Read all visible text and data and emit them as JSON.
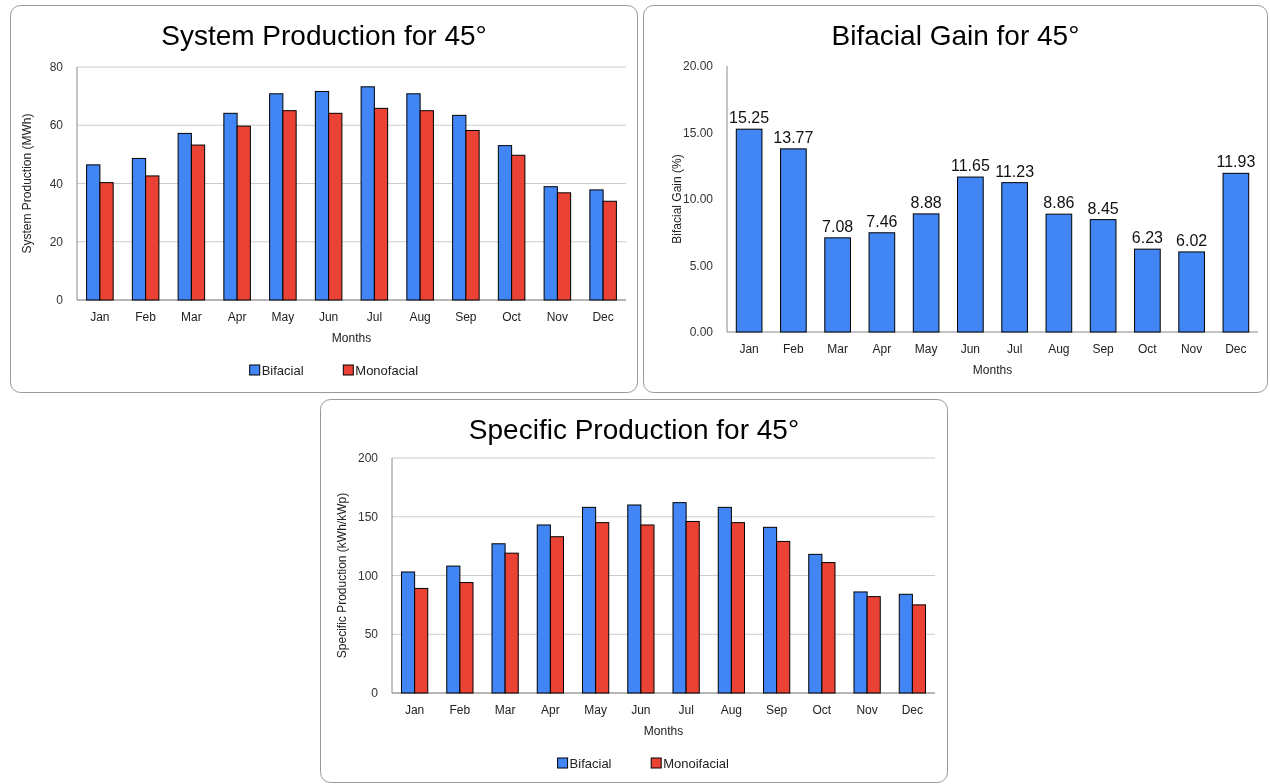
{
  "chart_data": [
    {
      "type": "bar",
      "title": "System Production for 45°",
      "xlabel": "Months",
      "ylabel": "System Production  (MWh)",
      "categories": [
        "Jan",
        "Feb",
        "Mar",
        "Apr",
        "May",
        "Jun",
        "Jul",
        "Aug",
        "Sep",
        "Oct",
        "Nov",
        "Dec"
      ],
      "series": [
        {
          "name": "Bifacial",
          "color": "#4285f4",
          "values": [
            46.4,
            48.6,
            57.2,
            64.1,
            70.8,
            71.6,
            73.2,
            70.8,
            63.4,
            53.0,
            38.9,
            37.8
          ]
        },
        {
          "name": "Monofacial",
          "color": "#ea4335",
          "values": [
            40.3,
            42.6,
            53.2,
            59.7,
            65.0,
            64.1,
            65.8,
            65.0,
            58.2,
            49.7,
            36.8,
            33.9
          ]
        }
      ],
      "ylim": [
        0,
        80
      ],
      "yticks": [
        0,
        20,
        40,
        60,
        80
      ],
      "grid": "y",
      "legend": "bottom"
    },
    {
      "type": "bar",
      "title": "Bifacial Gain for 45°",
      "xlabel": "Months",
      "ylabel": "Bifacial Gain (%)",
      "categories": [
        "Jan",
        "Feb",
        "Mar",
        "Apr",
        "May",
        "Jun",
        "Jul",
        "Aug",
        "Sep",
        "Oct",
        "Nov",
        "Dec"
      ],
      "series": [
        {
          "color": "#4285f4",
          "values": [
            15.25,
            13.77,
            7.08,
            7.46,
            8.88,
            11.65,
            11.23,
            8.86,
            8.45,
            6.23,
            6.02,
            11.93
          ]
        }
      ],
      "ylim": [
        0,
        20
      ],
      "yticks": [
        {
          "value": 0,
          "label": "0.00"
        },
        {
          "value": 5,
          "label": "5.00"
        },
        {
          "value": 10,
          "label": "10.00"
        },
        {
          "value": 15,
          "label": "15.00"
        },
        {
          "value": 20,
          "label": "20.00"
        }
      ],
      "data_labels": true
    },
    {
      "type": "bar",
      "title": "Specific Production for 45°",
      "xlabel": "Months",
      "ylabel": "Specific Production  (kWh/kWp)",
      "categories": [
        "Jan",
        "Feb",
        "Mar",
        "Apr",
        "May",
        "Jun",
        "Jul",
        "Aug",
        "Sep",
        "Oct",
        "Nov",
        "Dec"
      ],
      "series": [
        {
          "name": "Bifacial",
          "color": "#4285f4",
          "values": [
            103,
            108,
            127,
            143,
            158,
            160,
            162,
            158,
            141,
            118,
            86,
            84
          ]
        },
        {
          "name": "Monoifacial",
          "color": "#ea4335",
          "values": [
            89,
            94,
            119,
            133,
            145,
            143,
            146,
            145,
            129,
            111,
            82,
            75
          ]
        }
      ],
      "ylim": [
        0,
        200
      ],
      "yticks": [
        0,
        50,
        100,
        150,
        200
      ],
      "grid": "y",
      "legend": "bottom"
    }
  ]
}
